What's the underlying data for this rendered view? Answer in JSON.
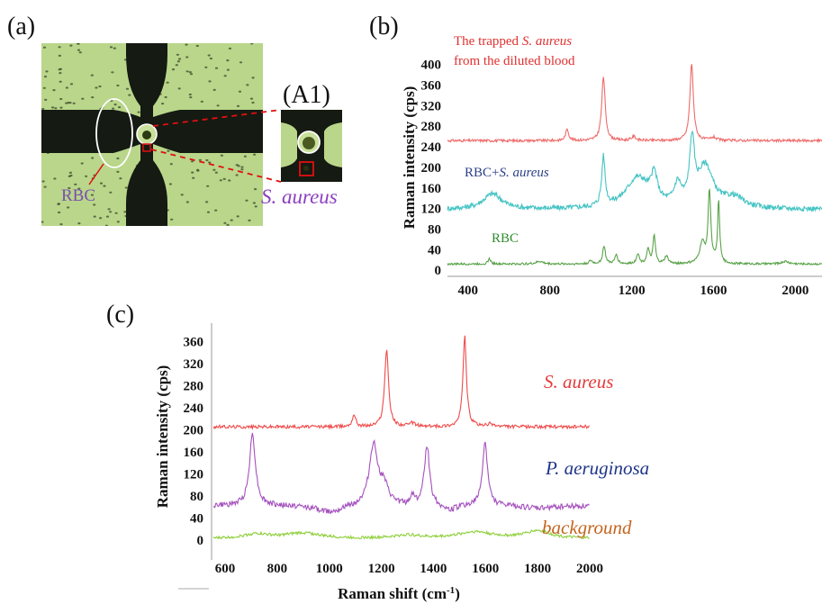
{
  "panel_labels": {
    "a": "(a)",
    "b": "(b)",
    "c": "(c)",
    "a1": "(A1)"
  },
  "micro": {
    "rbc_label": "RBC",
    "saureus_label": "S. aureus",
    "colors": {
      "background": "#b9d68a",
      "channel": "#151a12",
      "rbc_label": "#7b4fb0",
      "saureus_label": "#8a3fbf",
      "marker": "#e01010"
    }
  },
  "chart_data": [
    {
      "panel": "b",
      "type": "line",
      "ylabel": "Raman intensity (cps)",
      "xlabel": "",
      "xlim": [
        300,
        2130
      ],
      "ylim": [
        -5,
        410
      ],
      "xticks": [
        400,
        800,
        1200,
        1600,
        2000
      ],
      "yticks": [
        0,
        40,
        80,
        120,
        160,
        200,
        240,
        280,
        320,
        360,
        400
      ],
      "series": [
        {
          "name": "The trapped S. aureus from the diluted blood",
          "name_line1_plain": "The trapped ",
          "name_line1_italic": "S. aureus",
          "name_line2": "from the diluted blood",
          "color": "#ef6b6b",
          "baseline": 252,
          "noise": 2.5,
          "peaks": [
            [
              885,
              22,
              9
            ],
            [
              1062,
              125,
              10
            ],
            [
              1210,
              8,
              12
            ],
            [
              1493,
              150,
              10
            ],
            [
              1600,
              6,
              15
            ]
          ]
        },
        {
          "name": "RBC+S. aureus",
          "name_plain": "RBC+",
          "name_italic": "S. aureus",
          "color": "#45c3c3",
          "baseline": 118,
          "noise": 5,
          "peaks": [
            [
              520,
              30,
              55
            ],
            [
              1062,
              95,
              10
            ],
            [
              1230,
              60,
              70
            ],
            [
              1310,
              50,
              18
            ],
            [
              1425,
              40,
              20
            ],
            [
              1495,
              120,
              14
            ],
            [
              1560,
              80,
              45
            ],
            [
              1700,
              20,
              60
            ]
          ]
        },
        {
          "name": "RBC",
          "color": "#5aa34a",
          "baseline": 12,
          "noise": 2,
          "peaks": [
            [
              505,
              10,
              8
            ],
            [
              750,
              5,
              20
            ],
            [
              1000,
              6,
              10
            ],
            [
              1065,
              35,
              8
            ],
            [
              1125,
              18,
              8
            ],
            [
              1230,
              20,
              8
            ],
            [
              1280,
              28,
              8
            ],
            [
              1310,
              55,
              7
            ],
            [
              1370,
              15,
              10
            ],
            [
              1545,
              40,
              15
            ],
            [
              1580,
              140,
              8
            ],
            [
              1625,
              120,
              6
            ],
            [
              1950,
              5,
              20
            ]
          ]
        }
      ]
    },
    {
      "panel": "c",
      "type": "line",
      "ylabel": "Raman intensity (cps)",
      "xlabel": "Raman shift (cm",
      "xlabel_sup": "-1",
      "xlabel_end": ")",
      "xlim": [
        555,
        2000
      ],
      "ylim": [
        -20,
        380
      ],
      "xticks": [
        600,
        800,
        1000,
        1200,
        1400,
        1600,
        1800,
        2000
      ],
      "yticks": [
        0,
        40,
        80,
        120,
        160,
        200,
        240,
        280,
        320,
        360
      ],
      "series": [
        {
          "name": "S. aureus",
          "color": "#ef4a4a",
          "baseline": 205,
          "noise": 3,
          "peaks": [
            [
              1095,
              22,
              8
            ],
            [
              1220,
              140,
              9
            ],
            [
              1320,
              6,
              15
            ],
            [
              1520,
              165,
              8
            ],
            [
              1620,
              5,
              15
            ]
          ]
        },
        {
          "name": "P. aeruginosa",
          "color": "#a451bd",
          "baseline": 62,
          "noise": 5,
          "peaks": [
            [
              705,
              130,
              14
            ],
            [
              1000,
              -12,
              60
            ],
            [
              1170,
              110,
              20
            ],
            [
              1210,
              30,
              20
            ],
            [
              1320,
              18,
              8
            ],
            [
              1375,
              110,
              12
            ],
            [
              1460,
              -10,
              30
            ],
            [
              1598,
              115,
              12
            ],
            [
              1800,
              -5,
              60
            ]
          ]
        },
        {
          "name": "background",
          "color": "#8ecf3a",
          "baseline": 2,
          "noise": 2.5,
          "peaks": [
            [
              720,
              8,
              60
            ],
            [
              900,
              10,
              80
            ],
            [
              1300,
              6,
              60
            ],
            [
              1560,
              12,
              80
            ],
            [
              1800,
              14,
              60
            ]
          ]
        }
      ]
    }
  ],
  "legend_colors": {
    "b_top": "#e03030",
    "b_mid": "#2a3f86",
    "b_low": "#2e8b2e",
    "c_top": "#e33b3b",
    "c_mid": "#1f3588",
    "c_low": "#c4651e"
  }
}
